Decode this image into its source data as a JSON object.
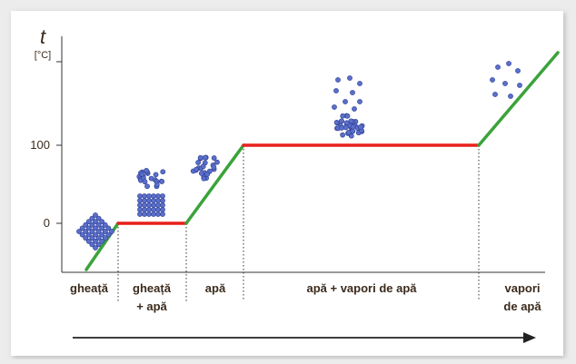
{
  "axis": {
    "label": "t",
    "unit": "[°C]",
    "ticks": [
      "100",
      "0"
    ]
  },
  "phases": [
    {
      "lines": [
        "gheață"
      ]
    },
    {
      "lines": [
        "gheață",
        "+ apă"
      ]
    },
    {
      "lines": [
        "apă"
      ]
    },
    {
      "lines": [
        "apă + vapori de apă"
      ]
    },
    {
      "lines": [
        "vapori",
        "de apă"
      ]
    }
  ]
}
